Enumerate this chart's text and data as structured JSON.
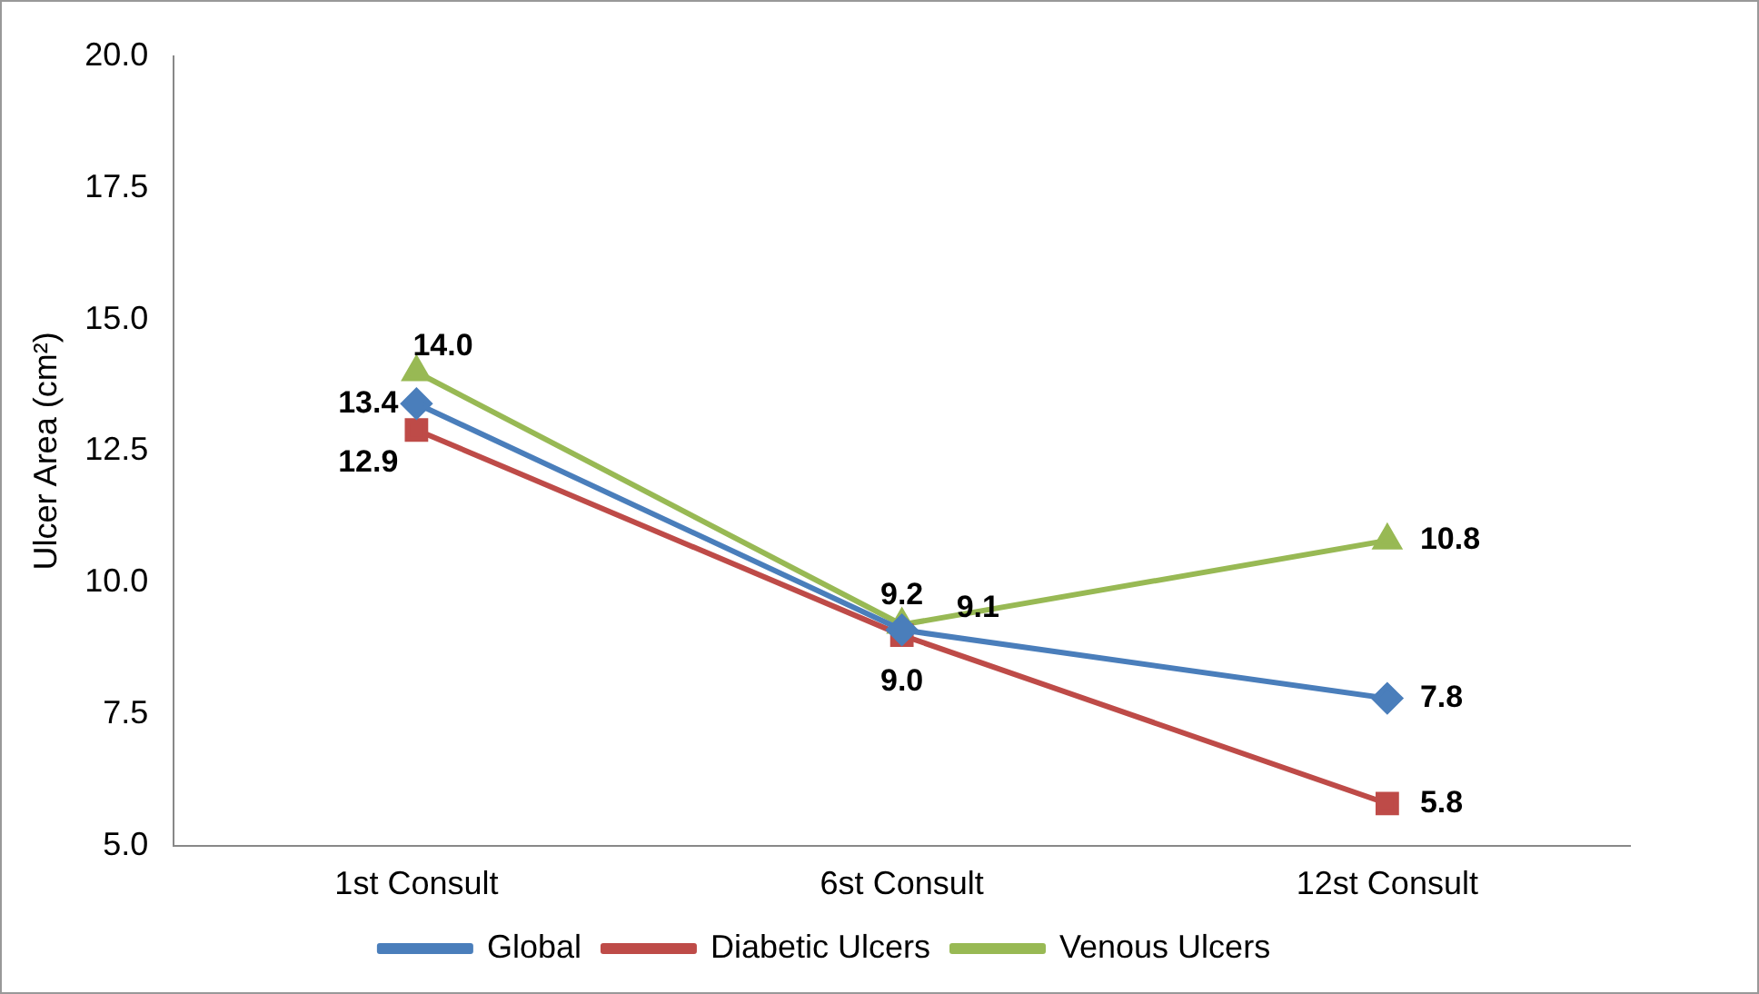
{
  "chart_data": {
    "type": "line",
    "ylabel": "Ulcer Area (cm²)",
    "categories": [
      "1st Consult",
      "6st Consult",
      "12st Consult"
    ],
    "series": [
      {
        "name": "Global",
        "color": "#4a7ebb",
        "marker": "diamond",
        "values": [
          13.4,
          9.1,
          7.8
        ],
        "value_labels": [
          "13.4",
          "9.1",
          "7.8"
        ]
      },
      {
        "name": "Diabetic Ulcers",
        "color": "#be4b48",
        "marker": "square",
        "values": [
          12.9,
          9.0,
          5.8
        ],
        "value_labels": [
          "12.9",
          "9.0",
          "5.8"
        ]
      },
      {
        "name": "Venous Ulcers",
        "color": "#98b954",
        "marker": "triangle",
        "values": [
          14.0,
          9.2,
          10.8
        ],
        "value_labels": [
          "14.0",
          "9.2",
          "10.8"
        ]
      }
    ],
    "ylim": [
      5,
      20
    ],
    "yticks": [
      {
        "value": 5,
        "label": "5.0"
      },
      {
        "value": 7.5,
        "label": "7.5"
      },
      {
        "value": 10,
        "label": "10.0"
      },
      {
        "value": 12.5,
        "label": "12.5"
      },
      {
        "value": 15,
        "label": "15.0"
      },
      {
        "value": 17.5,
        "label": "17.5"
      },
      {
        "value": 20,
        "label": "20.0"
      }
    ],
    "grid": false,
    "legend": "bottom",
    "line_style": "solid"
  }
}
